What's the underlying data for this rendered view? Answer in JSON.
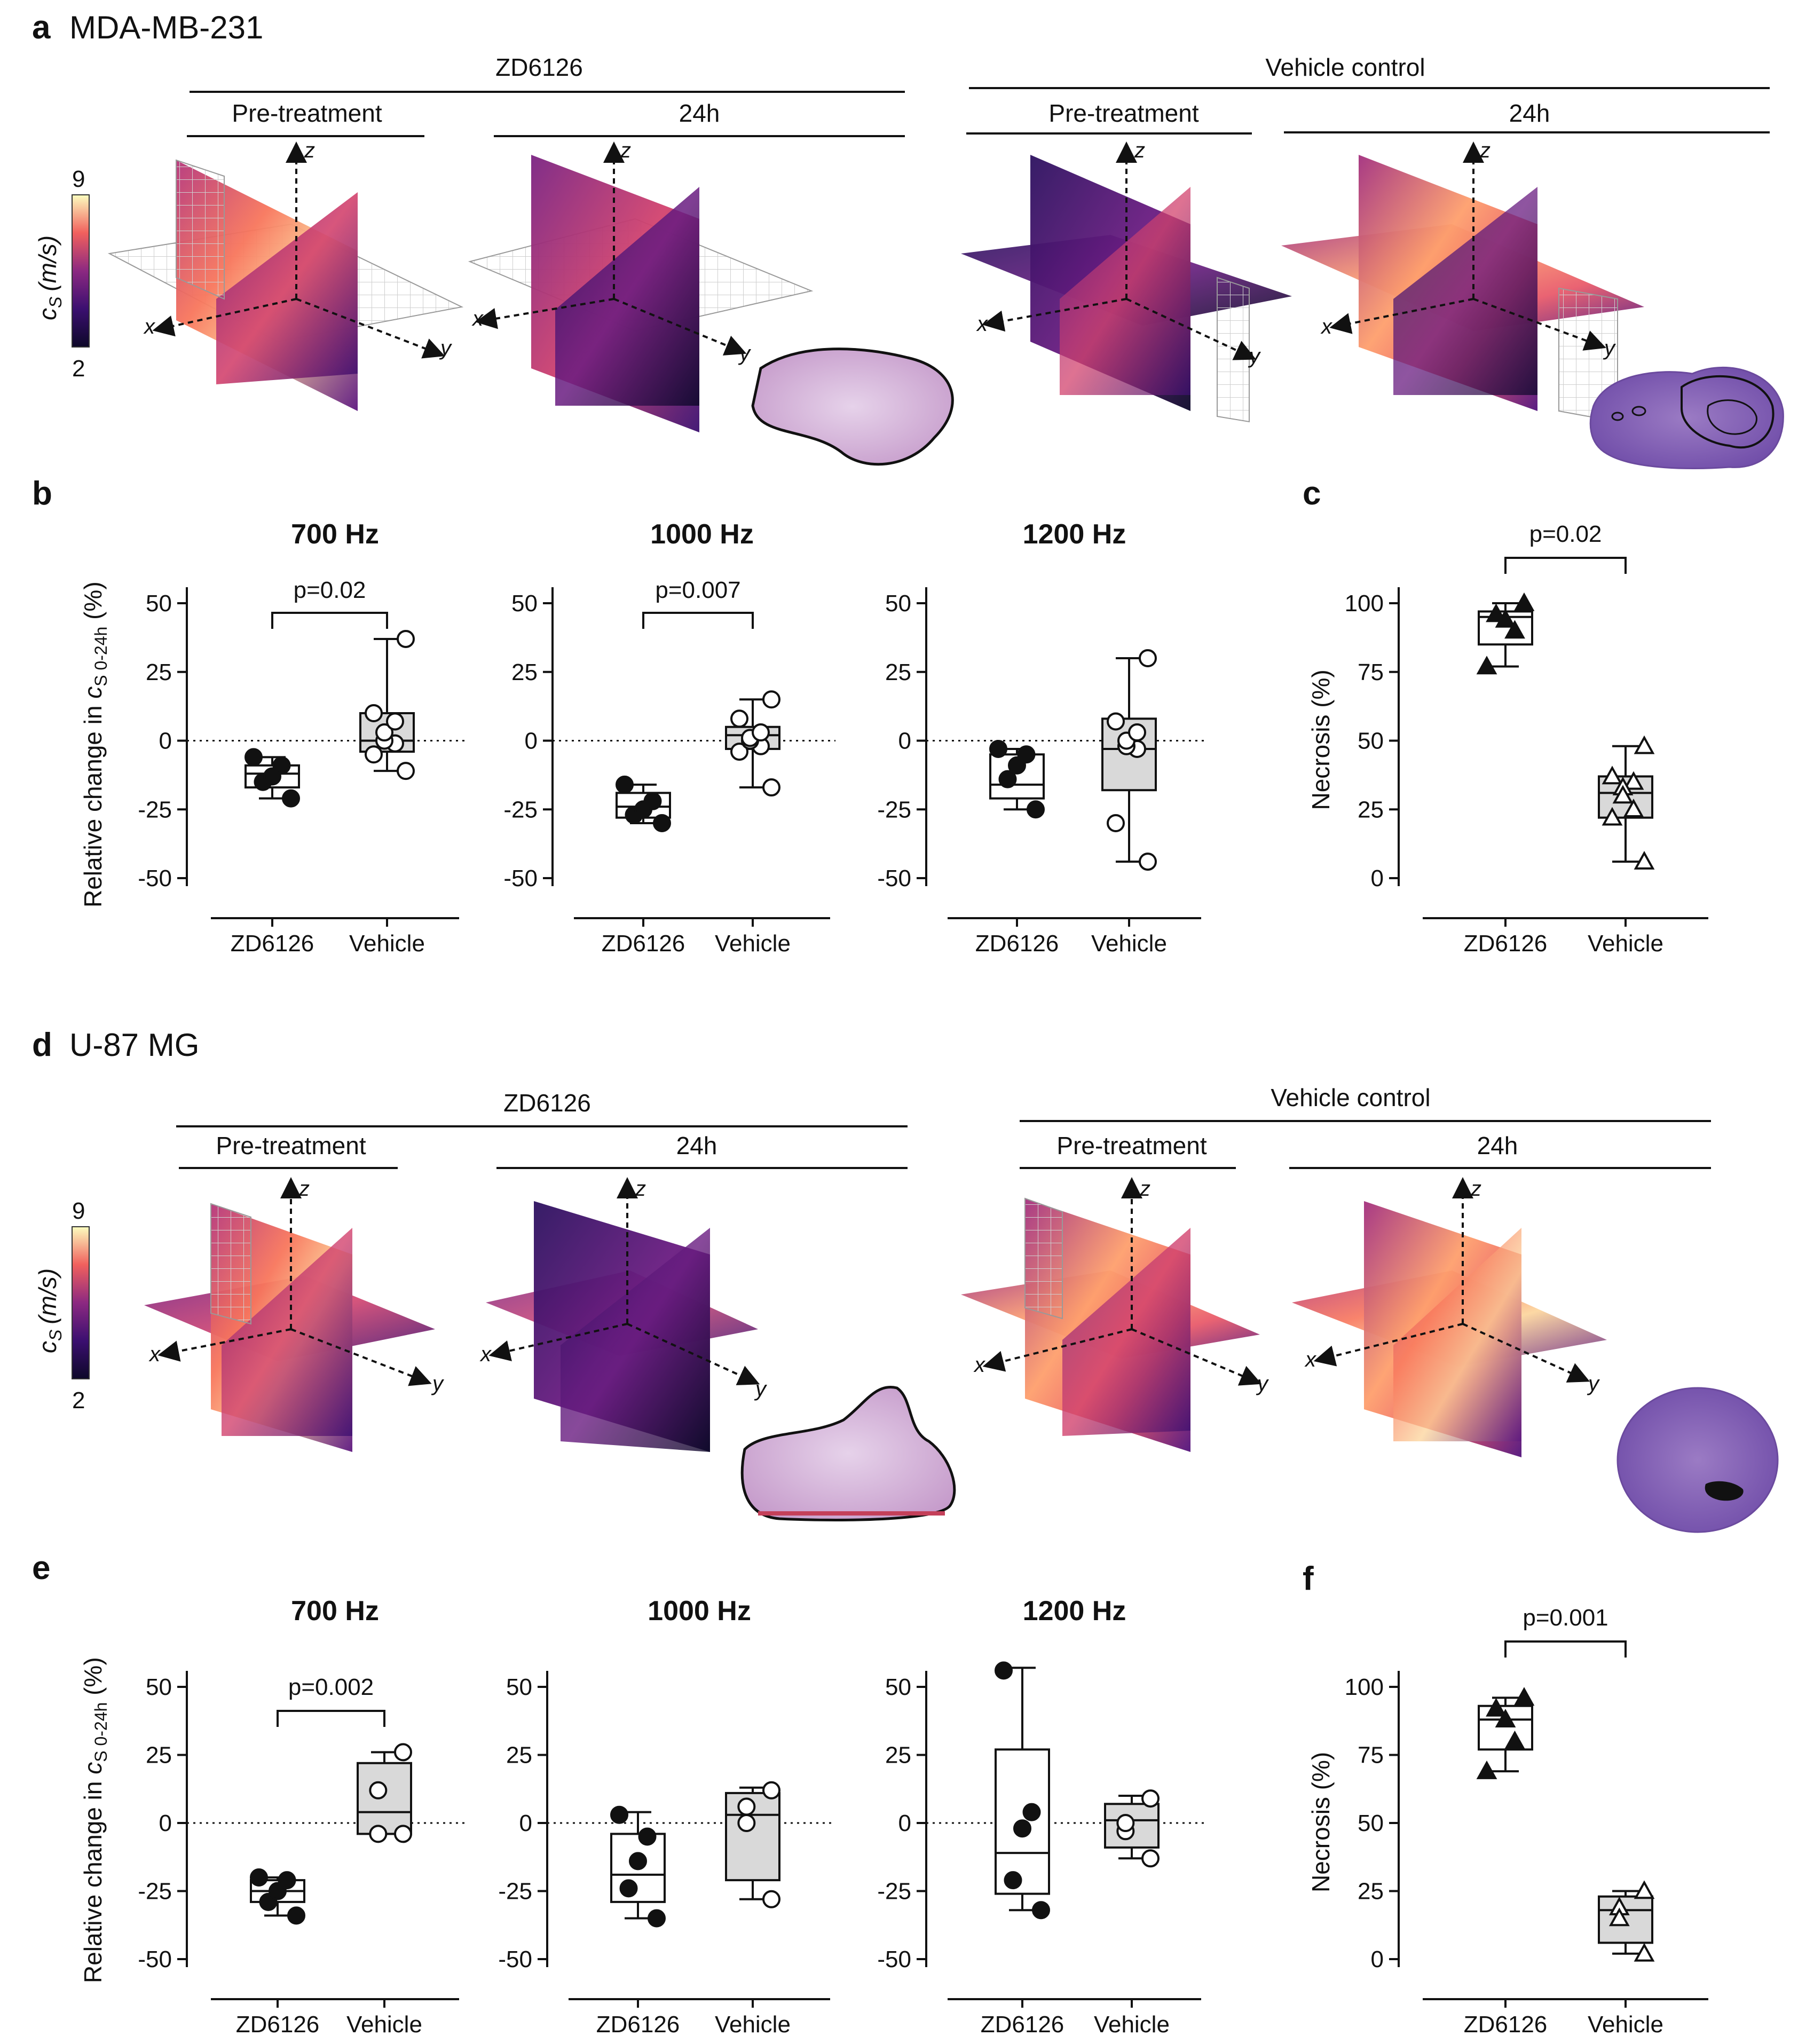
{
  "panel_a": {
    "letter": "a",
    "cell_line": "MDA-MB-231",
    "groups": [
      "ZD6126",
      "Vehicle control"
    ],
    "timepoints": [
      "Pre-treatment",
      "24h",
      "Pre-treatment",
      "24h"
    ],
    "colorbar": {
      "label": "c",
      "subscript": "S",
      "unit": "(m/s)",
      "max": "9",
      "min": "2"
    },
    "axes": [
      "x",
      "y",
      "z"
    ]
  },
  "panel_d": {
    "letter": "d",
    "cell_line": "U-87 MG",
    "groups": [
      "ZD6126",
      "Vehicle control"
    ],
    "timepoints": [
      "Pre-treatment",
      "24h",
      "Pre-treatment",
      "24h"
    ],
    "colorbar": {
      "label": "c",
      "subscript": "S",
      "unit": "(m/s)",
      "max": "9",
      "min": "2"
    },
    "axes": [
      "x",
      "y",
      "z"
    ]
  },
  "letters": {
    "b": "b",
    "c": "c",
    "e": "e",
    "f": "f"
  },
  "ylabel_change": {
    "pre": "Relative change in ",
    "c": "c",
    "sub": "S 0-24h",
    "post": " (%)"
  },
  "colors": {
    "vehicle_fill": "#d9d9d9",
    "zd_fill": "#ffffff",
    "cmap_low": "#0d0829",
    "cmap_high": "#fcfdbf"
  },
  "chart_data": [
    {
      "id": "b-700",
      "type": "box",
      "title": "700 Hz",
      "ylim": [
        -50,
        50
      ],
      "yticks": [
        50,
        25,
        0,
        -25,
        -50
      ],
      "categories": [
        "ZD6126",
        "Vehicle"
      ],
      "pvalue": "p=0.02",
      "series": [
        {
          "name": "ZD6126",
          "marker": "filled-circle",
          "box": {
            "min": -21,
            "q1": -17,
            "median": -12,
            "q3": -9,
            "max": -6
          },
          "points": [
            -21,
            -15,
            -13,
            -9,
            -6
          ]
        },
        {
          "name": "Vehicle",
          "marker": "open-circle",
          "box": {
            "min": -11,
            "q1": -4,
            "median": 0,
            "q3": 10,
            "max": 37
          },
          "points": [
            -11,
            -5,
            -1,
            0,
            3,
            7,
            10,
            37
          ]
        }
      ]
    },
    {
      "id": "b-1000",
      "type": "box",
      "title": "1000 Hz",
      "ylim": [
        -50,
        50
      ],
      "yticks": [
        50,
        25,
        0,
        -25,
        -50
      ],
      "categories": [
        "ZD6126",
        "Vehicle"
      ],
      "pvalue": "p=0.007",
      "series": [
        {
          "name": "ZD6126",
          "marker": "filled-circle",
          "box": {
            "min": -30,
            "q1": -28,
            "median": -24,
            "q3": -19,
            "max": -16
          },
          "points": [
            -30,
            -27,
            -25,
            -22,
            -16
          ]
        },
        {
          "name": "Vehicle",
          "marker": "open-circle",
          "box": {
            "min": -17,
            "q1": -3,
            "median": 2,
            "q3": 5,
            "max": 15
          },
          "points": [
            -17,
            -4,
            -2,
            0,
            1,
            3,
            8,
            15
          ]
        }
      ]
    },
    {
      "id": "b-1200",
      "type": "box",
      "title": "1200 Hz",
      "ylim": [
        -50,
        50
      ],
      "yticks": [
        50,
        25,
        0,
        -25,
        -50
      ],
      "categories": [
        "ZD6126",
        "Vehicle"
      ],
      "pvalue": "",
      "series": [
        {
          "name": "ZD6126",
          "marker": "filled-circle",
          "box": {
            "min": -25,
            "q1": -21,
            "median": -16,
            "q3": -5,
            "max": -3
          },
          "points": [
            -25,
            -14,
            -9,
            -5,
            -3
          ]
        },
        {
          "name": "Vehicle",
          "marker": "open-circle",
          "box": {
            "min": -44,
            "q1": -18,
            "median": -3,
            "q3": 8,
            "max": 30
          },
          "points": [
            -44,
            -30,
            -3,
            -2,
            0,
            3,
            7,
            30
          ]
        }
      ]
    },
    {
      "id": "c",
      "type": "box",
      "title": "",
      "ylabel": "Necrosis (%)",
      "ylim": [
        0,
        100
      ],
      "yticks": [
        100,
        75,
        50,
        25,
        0
      ],
      "categories": [
        "ZD6126",
        "Vehicle"
      ],
      "pvalue": "p=0.02",
      "series": [
        {
          "name": "ZD6126",
          "marker": "filled-triangle",
          "box": {
            "min": 77,
            "q1": 85,
            "median": 95,
            "q3": 97,
            "max": 100
          },
          "points": [
            100,
            96,
            94,
            90,
            77
          ]
        },
        {
          "name": "Vehicle",
          "marker": "open-triangle",
          "box": {
            "min": 6,
            "q1": 22,
            "median": 31,
            "q3": 37,
            "max": 48
          },
          "points": [
            48,
            37,
            35,
            33,
            30,
            25,
            22,
            6
          ]
        }
      ]
    },
    {
      "id": "e-700",
      "type": "box",
      "title": "700 Hz",
      "ylim": [
        -50,
        50
      ],
      "yticks": [
        50,
        25,
        0,
        -25,
        -50
      ],
      "categories": [
        "ZD6126",
        "Vehicle"
      ],
      "pvalue": "p=0.002",
      "series": [
        {
          "name": "ZD6126",
          "marker": "filled-circle",
          "box": {
            "min": -34,
            "q1": -29,
            "median": -25,
            "q3": -21,
            "max": -20
          },
          "points": [
            -34,
            -29,
            -25,
            -21,
            -20
          ]
        },
        {
          "name": "Vehicle",
          "marker": "open-circle",
          "box": {
            "min": -4,
            "q1": -4,
            "median": 4,
            "q3": 22,
            "max": 26
          },
          "points": [
            -4,
            -4,
            12,
            26
          ]
        }
      ]
    },
    {
      "id": "e-1000",
      "type": "box",
      "title": "1000 Hz",
      "ylim": [
        -50,
        50
      ],
      "yticks": [
        50,
        25,
        0,
        -25,
        -50
      ],
      "categories": [
        "ZD6126",
        "Vehicle"
      ],
      "pvalue": "",
      "series": [
        {
          "name": "ZD6126",
          "marker": "filled-circle",
          "box": {
            "min": -35,
            "q1": -29,
            "median": -19,
            "q3": -4,
            "max": 4
          },
          "points": [
            -35,
            -24,
            -14,
            -5,
            3
          ]
        },
        {
          "name": "Vehicle",
          "marker": "open-circle",
          "box": {
            "min": -28,
            "q1": -21,
            "median": 3,
            "q3": 11,
            "max": 13
          },
          "points": [
            -28,
            0,
            6,
            12
          ]
        }
      ]
    },
    {
      "id": "e-1200",
      "type": "box",
      "title": "1200 Hz",
      "ylim": [
        -50,
        50
      ],
      "yticks": [
        50,
        25,
        0,
        -25,
        -50
      ],
      "categories": [
        "ZD6126",
        "Vehicle"
      ],
      "pvalue": "",
      "series": [
        {
          "name": "ZD6126",
          "marker": "filled-circle",
          "box": {
            "min": -32,
            "q1": -26,
            "median": -11,
            "q3": 27,
            "max": 57
          },
          "points": [
            -32,
            -21,
            -2,
            4,
            56
          ]
        },
        {
          "name": "Vehicle",
          "marker": "open-circle",
          "box": {
            "min": -13,
            "q1": -9,
            "median": 1,
            "q3": 7,
            "max": 10
          },
          "points": [
            -13,
            -3,
            0,
            9
          ]
        }
      ]
    },
    {
      "id": "f",
      "type": "box",
      "title": "",
      "ylabel": "Necrosis (%)",
      "ylim": [
        0,
        100
      ],
      "yticks": [
        100,
        75,
        50,
        25,
        0
      ],
      "categories": [
        "ZD6126",
        "Vehicle"
      ],
      "pvalue": "p=0.001",
      "series": [
        {
          "name": "ZD6126",
          "marker": "filled-triangle",
          "box": {
            "min": 69,
            "q1": 77,
            "median": 88,
            "q3": 93,
            "max": 96
          },
          "points": [
            96,
            92,
            88,
            80,
            69
          ]
        },
        {
          "name": "Vehicle",
          "marker": "open-triangle",
          "box": {
            "min": 2,
            "q1": 6,
            "median": 18,
            "q3": 23,
            "max": 25
          },
          "points": [
            25,
            19,
            15,
            2
          ]
        }
      ]
    }
  ]
}
